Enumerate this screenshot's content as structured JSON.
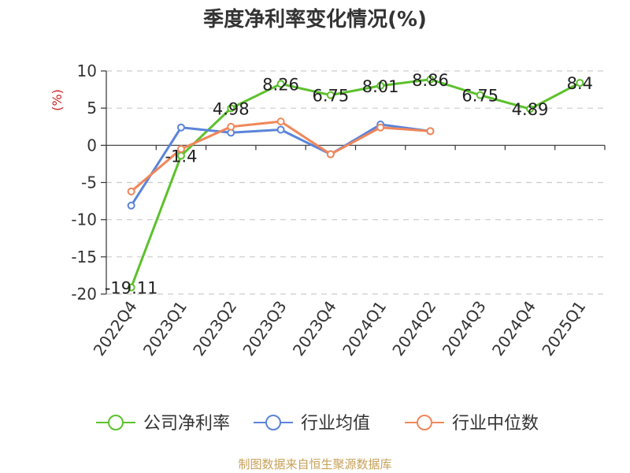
{
  "title": "季度净利率变化情况(%)",
  "source": "制图数据来自恒生聚源数据库",
  "chart_data": {
    "type": "line",
    "title": "季度净利率变化情况(%)",
    "ylabel": "(%)",
    "xlabel": "",
    "ylim": [
      -20,
      10
    ],
    "yticks": [
      10,
      5,
      0,
      -5,
      -10,
      -15,
      -20
    ],
    "categories": [
      "2022Q4",
      "2023Q1",
      "2023Q2",
      "2023Q3",
      "2023Q4",
      "2024Q1",
      "2024Q2",
      "2024Q3",
      "2024Q4",
      "2025Q1"
    ],
    "grid": true,
    "legend_position": "bottom",
    "series": [
      {
        "name": "公司净利率",
        "color": "#5cc12c",
        "values": [
          -19.11,
          -1.4,
          4.98,
          8.26,
          6.75,
          8.01,
          8.86,
          6.75,
          4.89,
          8.4
        ],
        "labels": [
          "-19.11",
          "-1.4",
          "4.98",
          "8.26",
          "6.75",
          "8.01",
          "8.86",
          "6.75",
          "4.89",
          "8.4"
        ]
      },
      {
        "name": "行业均值",
        "color": "#5b84d8",
        "values": [
          -8.1,
          2.4,
          1.7,
          2.1,
          -1.2,
          2.8,
          1.9,
          null,
          null,
          null
        ]
      },
      {
        "name": "行业中位数",
        "color": "#f0875a",
        "values": [
          -6.2,
          -0.5,
          2.5,
          3.2,
          -1.2,
          2.4,
          1.9,
          null,
          null,
          null
        ]
      }
    ]
  }
}
